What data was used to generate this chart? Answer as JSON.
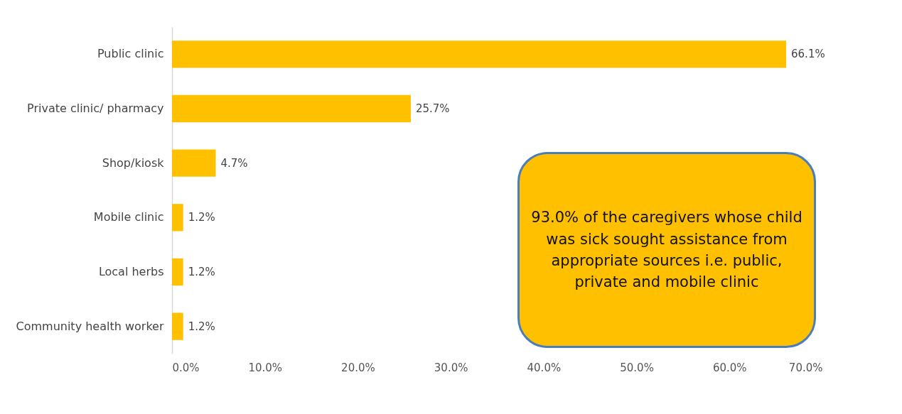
{
  "chart_data": {
    "type": "bar",
    "orientation": "horizontal",
    "categories": [
      "Public clinic",
      "Private clinic/ pharmacy",
      "Shop/kiosk",
      "Mobile clinic",
      "Local herbs",
      "Community health worker"
    ],
    "values": [
      66.1,
      25.7,
      4.7,
      1.2,
      1.2,
      1.2
    ],
    "value_labels": [
      "66.1%",
      "25.7%",
      "4.7%",
      "1.2%",
      "1.2%",
      "1.2%"
    ],
    "color": "#ffc000",
    "xlim": [
      0,
      70
    ],
    "xticks": [
      {
        "value": 0,
        "label": "0.0%"
      },
      {
        "value": 10,
        "label": "10.0%"
      },
      {
        "value": 20,
        "label": "20.0%"
      },
      {
        "value": 30,
        "label": "30.0%"
      },
      {
        "value": 40,
        "label": "40.0%"
      },
      {
        "value": 50,
        "label": "50.0%"
      },
      {
        "value": 60,
        "label": "60.0%"
      },
      {
        "value": 70,
        "label": "70.0%"
      }
    ],
    "grid": false,
    "annotations": [
      "93.0% of the caregivers whose child was sick sought assistance from appropriate sources i.e. public, private and mobile clinic"
    ]
  }
}
